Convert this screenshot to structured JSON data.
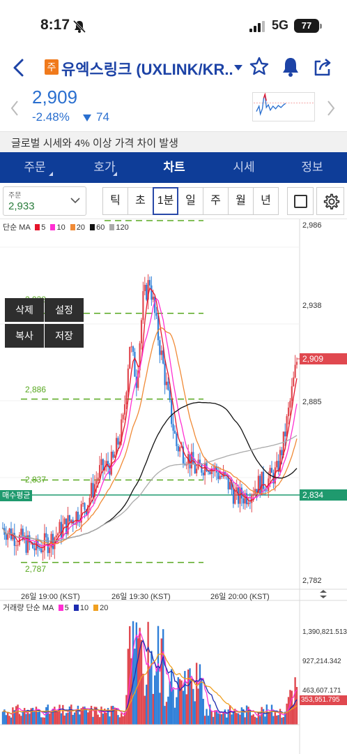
{
  "status": {
    "time": "8:17",
    "network": "5G",
    "battery": "77"
  },
  "header": {
    "badge": "주",
    "title": "유엑스링크 (UXLINK/KR..."
  },
  "price": {
    "current": "2,909",
    "change_pct": "-2.48%",
    "change_abs": "74"
  },
  "notice": "글로벌 시세와 4% 이상 가격 차이 발생",
  "tabs": [
    {
      "label": "주문"
    },
    {
      "label": "호가"
    },
    {
      "label": "차트"
    },
    {
      "label": "시세"
    },
    {
      "label": "정보"
    }
  ],
  "order": {
    "label": "주문",
    "value": "2,933"
  },
  "timeframes": [
    "틱",
    "초",
    "1분",
    "일",
    "주",
    "월",
    "년"
  ],
  "selected_timeframe": "1분",
  "legend": {
    "price": {
      "prefix": "단순 MA",
      "ma": [
        "5",
        "10",
        "20",
        "60",
        "120"
      ]
    },
    "volume": {
      "prefix": "거래량 단순 MA",
      "ma": [
        "5",
        "10",
        "20"
      ]
    }
  },
  "colors": {
    "ma5": "#e5142a",
    "ma10": "#ff2fd2",
    "ma20": "#f08a36",
    "ma60": "#111111",
    "ma120": "#aaaaaa",
    "vma5": "#ff2fd2",
    "vma10": "#1c2bb0",
    "vma20": "#f0a020",
    "up": "#e0484f",
    "down": "#2f7fd8",
    "hline": "#58a820",
    "avg": "#1f9a6e",
    "tabs": "#0e3d98"
  },
  "overlay_menu": [
    "삭제",
    "설정",
    "복사",
    "저장"
  ],
  "chart_data": {
    "type": "candlestick",
    "y_axis": [
      "2,986",
      "2,938",
      "2,885",
      "2,834",
      "2,782"
    ],
    "ylim": [
      2782,
      2986
    ],
    "x_labels": [
      "26일 19:00 (KST)",
      "26일 19:30 (KST)",
      "26일 20:00 (KST)"
    ],
    "current_price_tag": "2,909",
    "avg_price": {
      "label": "매수평균",
      "value": "2,834"
    },
    "horizontal_lines": [
      {
        "label": "2,938",
        "value": 2938
      },
      {
        "label": "2,886",
        "value": 2886
      },
      {
        "label": "2,837",
        "value": 2837
      },
      {
        "label": "2,787",
        "value": 2787
      }
    ],
    "volume_axis": [
      "1,390,821.513",
      "927,214.342",
      "463,607.171"
    ],
    "volume_tag": "353,951.795"
  }
}
